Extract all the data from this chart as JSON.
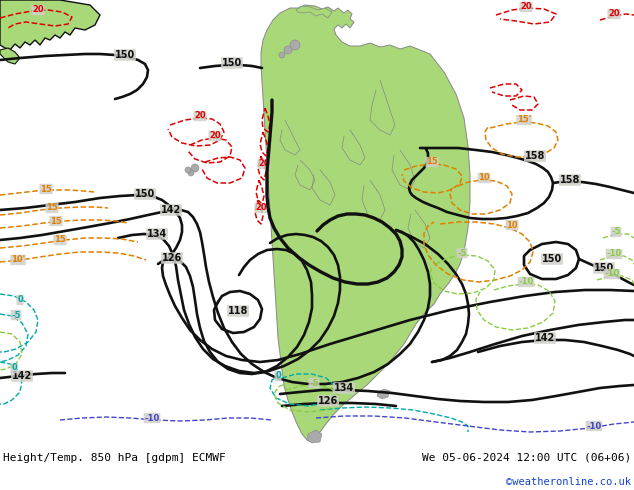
{
  "title_left": "Height/Temp. 850 hPa [gdpm] ECMWF",
  "title_right": "We 05-06-2024 12:00 UTC (06+06)",
  "credit": "©weatheronline.co.uk",
  "bg_color": "#d0cfc8",
  "land_color_sa": "#a8d878",
  "land_color_gray": "#aaaaaa",
  "fig_width": 6.34,
  "fig_height": 4.9,
  "dpi": 100
}
